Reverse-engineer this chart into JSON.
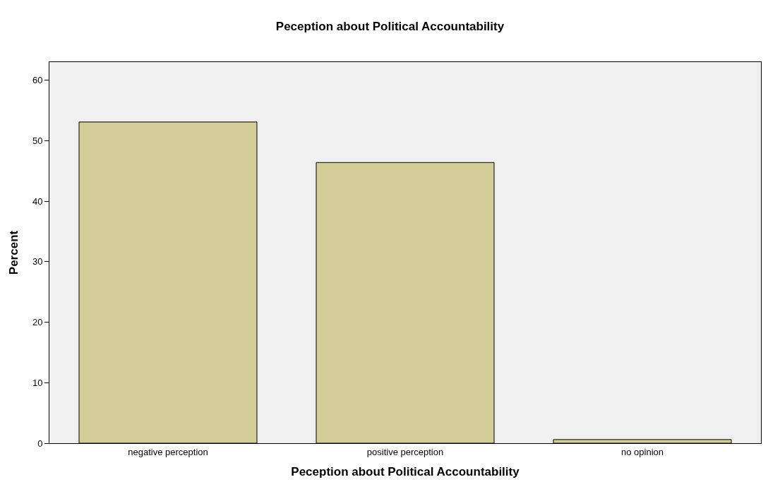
{
  "chart_data": {
    "type": "bar",
    "title": "Peception about Political Accountability",
    "xlabel": "Peception about Political Accountability",
    "ylabel": "Percent",
    "categories": [
      "negative perception",
      "positive perception",
      "no opinion"
    ],
    "values": [
      53.1,
      46.4,
      0.6
    ],
    "color": "#d3ce98",
    "ylim": [
      0,
      63
    ],
    "yticks": [
      0,
      10,
      20,
      30,
      40,
      50,
      60
    ],
    "grid": false,
    "legend": false
  }
}
